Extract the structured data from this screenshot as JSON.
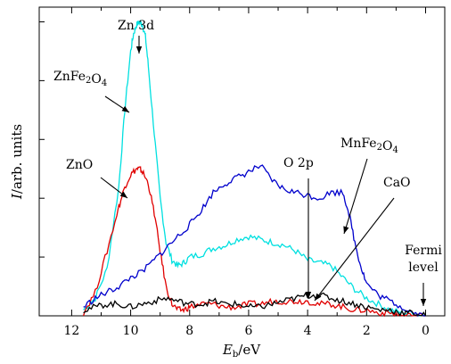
{
  "chart_data": {
    "type": "line",
    "xlabel_main": "E",
    "xlabel_sub": "b",
    "xlabel_unit": "/eV",
    "ylabel_main": "I",
    "ylabel_rest": "/arb. units",
    "xlim": [
      13.1,
      -0.65
    ],
    "x_ticks": [
      "12",
      "10",
      "8",
      "6",
      "4",
      "2",
      "0"
    ],
    "x_tick_values": [
      12,
      10,
      8,
      6,
      4,
      2,
      0
    ],
    "ylim": [
      0,
      1.05
    ],
    "y_ticks_shown": false,
    "grid": false,
    "legend": "none",
    "series": [
      {
        "name": "ZnFe2O4",
        "color": "#00e0e0",
        "x": [
          11.6,
          11.2,
          10.8,
          10.4,
          10.2,
          10.0,
          9.9,
          9.8,
          9.7,
          9.6,
          9.5,
          9.4,
          9.2,
          9.0,
          8.8,
          8.6,
          8.4,
          8.2,
          8.0,
          7.6,
          7.2,
          6.8,
          6.4,
          6.0,
          5.6,
          5.2,
          4.8,
          4.4,
          4.0,
          3.6,
          3.2,
          2.8,
          2.4,
          2.0,
          1.6,
          1.2,
          0.8,
          0.4,
          0.0
        ],
        "y": [
          0.02,
          0.06,
          0.16,
          0.44,
          0.7,
          0.9,
          0.96,
          0.99,
          1.0,
          0.99,
          0.95,
          0.85,
          0.62,
          0.4,
          0.25,
          0.19,
          0.17,
          0.18,
          0.2,
          0.21,
          0.23,
          0.24,
          0.26,
          0.27,
          0.26,
          0.25,
          0.24,
          0.22,
          0.19,
          0.18,
          0.17,
          0.13,
          0.09,
          0.06,
          0.04,
          0.02,
          0.01,
          0.01,
          0.0
        ]
      },
      {
        "name": "ZnO",
        "color": "#e00000",
        "x": [
          11.6,
          11.2,
          10.8,
          10.4,
          10.2,
          10.0,
          9.8,
          9.7,
          9.6,
          9.4,
          9.2,
          9.0,
          8.8,
          8.6,
          8.4,
          8.2,
          8.0,
          7.6,
          7.2,
          6.8,
          6.4,
          6.0,
          5.6,
          5.2,
          4.8,
          4.4,
          4.0,
          3.6,
          3.2,
          2.8,
          2.4,
          2.0,
          1.6,
          1.2,
          0.8,
          0.4,
          0.0
        ],
        "y": [
          0.01,
          0.08,
          0.22,
          0.37,
          0.44,
          0.48,
          0.5,
          0.5,
          0.49,
          0.45,
          0.35,
          0.22,
          0.1,
          0.04,
          0.02,
          0.02,
          0.03,
          0.04,
          0.04,
          0.03,
          0.03,
          0.04,
          0.04,
          0.05,
          0.05,
          0.05,
          0.05,
          0.04,
          0.04,
          0.03,
          0.02,
          0.02,
          0.01,
          0.01,
          0.0,
          0.0,
          0.0
        ]
      },
      {
        "name": "MnFe2O4",
        "color": "#0000cc",
        "x": [
          11.6,
          11.2,
          10.8,
          10.4,
          10.0,
          9.6,
          9.2,
          8.8,
          8.4,
          8.0,
          7.6,
          7.2,
          6.8,
          6.4,
          6.0,
          5.6,
          5.2,
          4.8,
          4.4,
          4.0,
          3.6,
          3.2,
          2.8,
          2.6,
          2.4,
          2.2,
          2.0,
          1.6,
          1.2,
          0.8,
          0.4,
          0.0
        ],
        "y": [
          0.03,
          0.06,
          0.08,
          0.1,
          0.13,
          0.15,
          0.19,
          0.23,
          0.27,
          0.31,
          0.36,
          0.42,
          0.45,
          0.47,
          0.49,
          0.51,
          0.46,
          0.43,
          0.42,
          0.41,
          0.4,
          0.42,
          0.42,
          0.35,
          0.25,
          0.17,
          0.11,
          0.07,
          0.05,
          0.03,
          0.01,
          0.0
        ]
      },
      {
        "name": "CaO",
        "color": "#000000",
        "x": [
          11.6,
          11.2,
          10.8,
          10.4,
          10.0,
          9.6,
          9.2,
          8.8,
          8.4,
          8.0,
          7.6,
          7.2,
          6.8,
          6.4,
          6.0,
          5.6,
          5.2,
          4.8,
          4.4,
          4.0,
          3.6,
          3.2,
          2.8,
          2.4,
          2.0,
          1.6,
          1.2,
          0.8,
          0.4,
          0.0
        ],
        "y": [
          0.02,
          0.03,
          0.04,
          0.04,
          0.03,
          0.04,
          0.05,
          0.06,
          0.05,
          0.04,
          0.04,
          0.05,
          0.04,
          0.04,
          0.03,
          0.03,
          0.04,
          0.05,
          0.06,
          0.07,
          0.07,
          0.06,
          0.05,
          0.04,
          0.03,
          0.02,
          0.02,
          0.01,
          0.01,
          0.0
        ]
      }
    ],
    "annotations": [
      {
        "id": "zn3d",
        "lines": [
          "Zn 3d"
        ]
      },
      {
        "id": "znfe2o4",
        "lines": [
          "ZnFe2O4"
        ]
      },
      {
        "id": "zno",
        "lines": [
          "ZnO"
        ]
      },
      {
        "id": "o2p",
        "lines": [
          "O 2p"
        ]
      },
      {
        "id": "mnfe2o4",
        "lines": [
          "MnFe2O4"
        ]
      },
      {
        "id": "cao",
        "lines": [
          "CaO"
        ]
      },
      {
        "id": "fermi",
        "lines": [
          "Fermi",
          "level"
        ]
      }
    ]
  }
}
